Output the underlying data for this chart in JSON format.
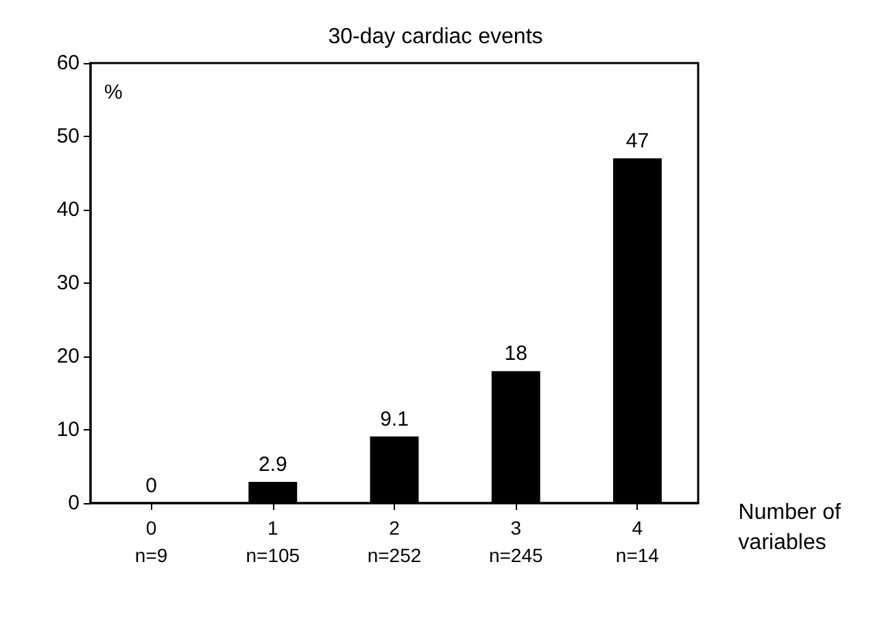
{
  "chart_data": {
    "type": "bar",
    "title": "30-day cardiac events",
    "xlabel": "Number of\nvariables",
    "ylabel": "%",
    "categories": [
      "0\nn=9",
      "1\nn=105",
      "2\nn=252",
      "3\nn=245",
      "4\nn=14"
    ],
    "values": [
      0,
      2.9,
      9.1,
      18,
      47
    ],
    "color": "#000000",
    "data_labels": true,
    "ylim": [
      0,
      60
    ],
    "yticks": [
      0,
      10,
      20,
      30,
      40,
      50,
      60
    ],
    "grid": false
  }
}
